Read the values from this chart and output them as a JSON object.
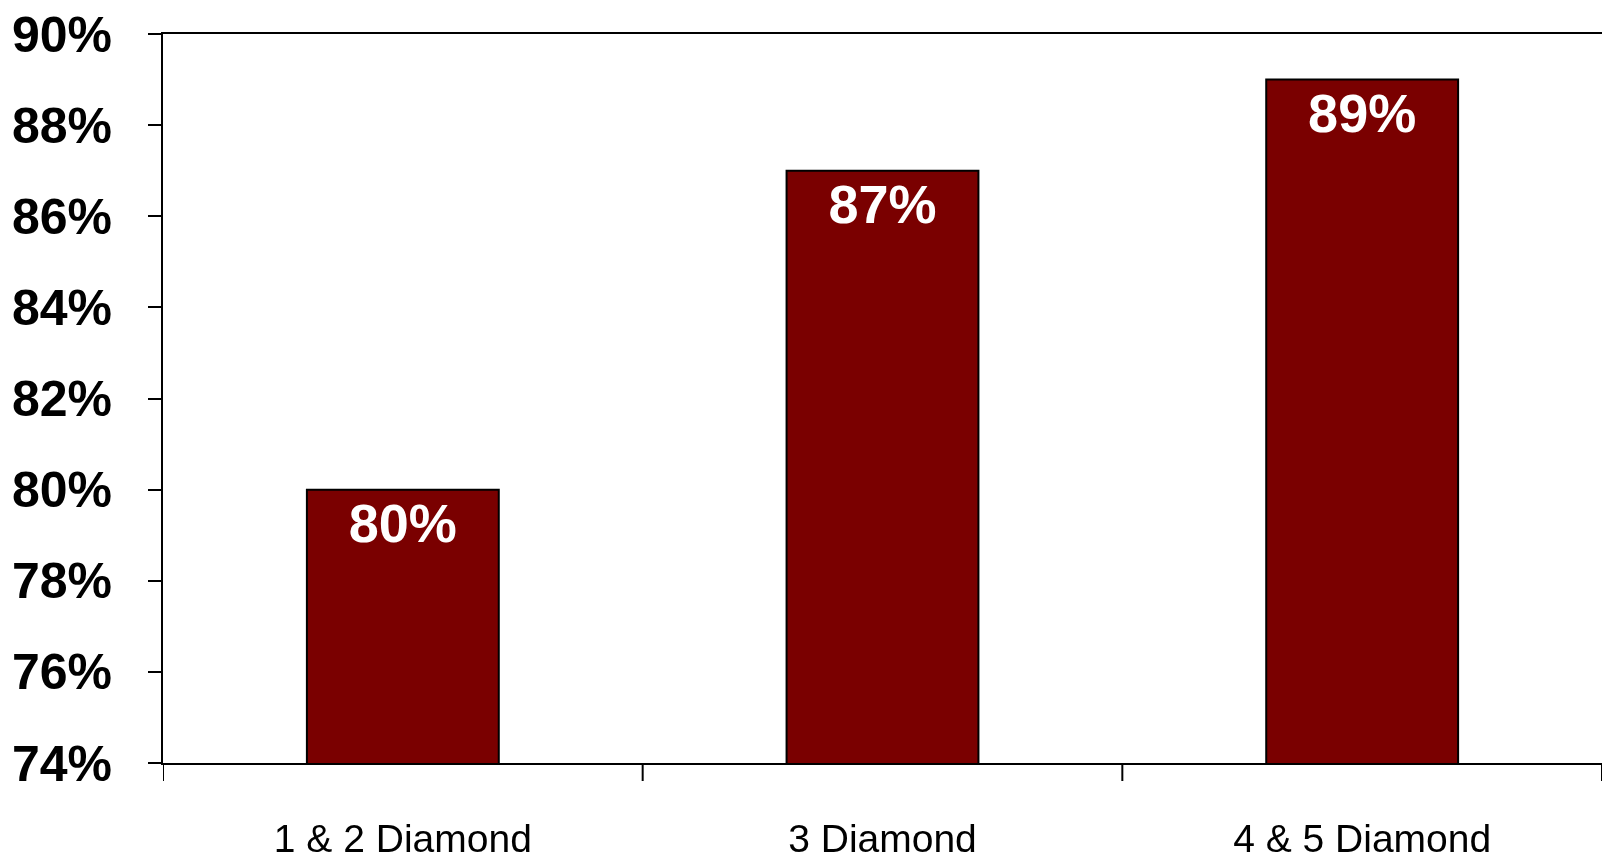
{
  "chart_data": {
    "type": "bar",
    "categories": [
      "1 & 2 Diamond",
      "3 Diamond",
      "4 & 5 Diamond"
    ],
    "values": [
      80,
      87,
      89
    ],
    "color": "#7a0000",
    "value_labels": [
      "80%",
      "87%",
      "89%"
    ],
    "ylim": [
      74,
      90
    ],
    "yticks": [
      {
        "value": 74,
        "label": "74%"
      },
      {
        "value": 76,
        "label": "76%"
      },
      {
        "value": 78,
        "label": "78%"
      },
      {
        "value": 80,
        "label": "80%"
      },
      {
        "value": 82,
        "label": "82%"
      },
      {
        "value": 84,
        "label": "84%"
      },
      {
        "value": 86,
        "label": "86%"
      },
      {
        "value": 88,
        "label": "88%"
      },
      {
        "value": 90,
        "label": "90%"
      }
    ]
  }
}
